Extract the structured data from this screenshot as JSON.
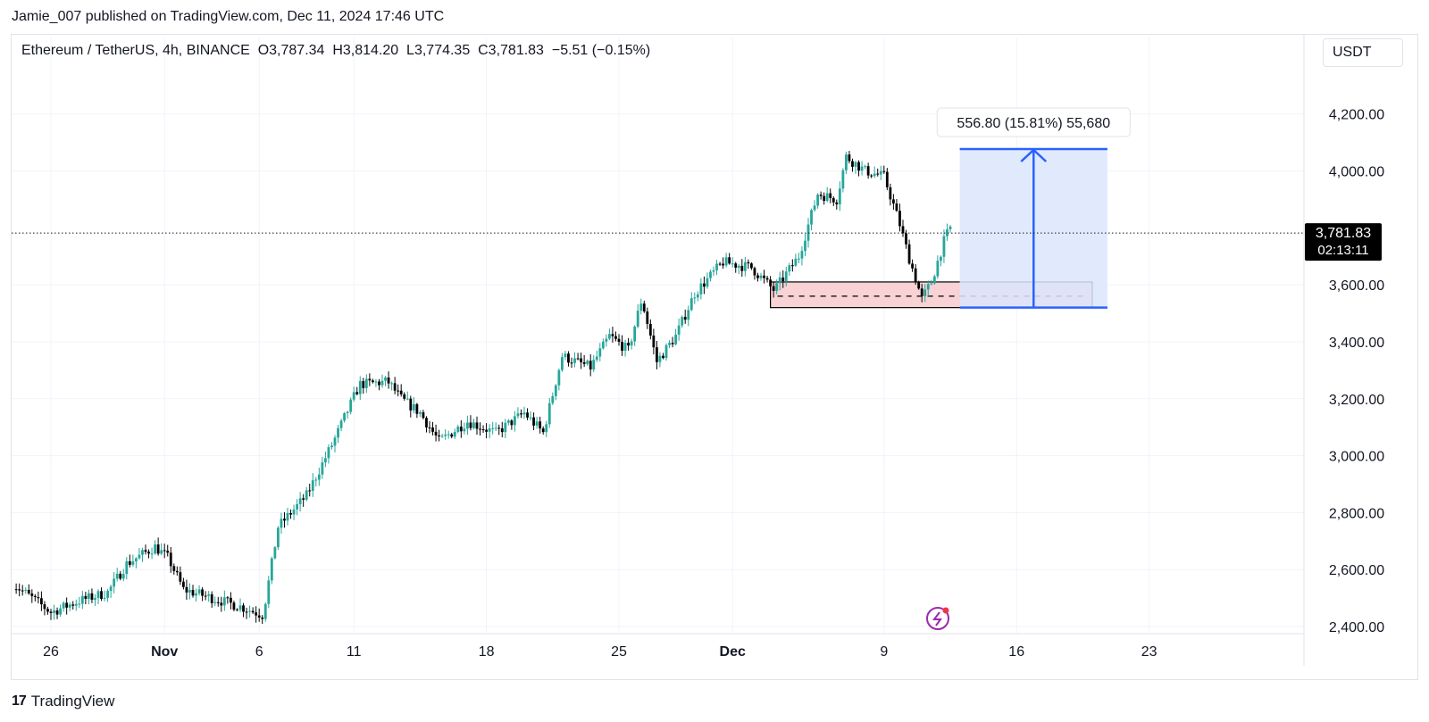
{
  "header": {
    "published_text": "Jamie_007 published on TradingView.com, Dec 11, 2024 17:46 UTC"
  },
  "legend": {
    "text": "Ethereum / TetherUS, 4h, BINANCE  O3,787.34  H3,814.20  L3,774.35  C3,781.83  −5.51 (−0.15%)"
  },
  "price_scale": {
    "currency": "USDT",
    "last_price": "3,781.83",
    "countdown": "02:13:11"
  },
  "measure_label": "556.80 (15.81%) 55,680",
  "footer": {
    "brand": "TradingView",
    "logo_glyph": "17"
  },
  "colors": {
    "up": "#26a69a",
    "down": "#000000",
    "measure": "#2962ff",
    "measure_fill": "#dce6fd",
    "zone_fill": "#f8d2d4",
    "flash_icon": "#9c27b0"
  },
  "chart_data": {
    "type": "candlestick",
    "symbol": "ETHUSDT",
    "timeframe": "4h",
    "ylim": [
      2380,
      4420
    ],
    "yticks": [
      {
        "value": 2400,
        "label": "2,400.00"
      },
      {
        "value": 2600,
        "label": "2,600.00"
      },
      {
        "value": 2800,
        "label": "2,800.00"
      },
      {
        "value": 3000,
        "label": "3,000.00"
      },
      {
        "value": 3200,
        "label": "3,200.00"
      },
      {
        "value": 3400,
        "label": "3,400.00"
      },
      {
        "value": 3600,
        "label": "3,600.00"
      },
      {
        "value": 4000,
        "label": "4,000.00"
      },
      {
        "value": 4200,
        "label": "4,200.00"
      }
    ],
    "xticks": [
      {
        "day": 0,
        "label": "26",
        "bold": false
      },
      {
        "day": 6,
        "label": "Nov",
        "bold": true
      },
      {
        "day": 11,
        "label": "6",
        "bold": false
      },
      {
        "day": 16,
        "label": "11",
        "bold": false
      },
      {
        "day": 23,
        "label": "18",
        "bold": false
      },
      {
        "day": 30,
        "label": "25",
        "bold": false
      },
      {
        "day": 36,
        "label": "Dec",
        "bold": true
      },
      {
        "day": 44,
        "label": "9",
        "bold": false
      },
      {
        "day": 51,
        "label": "16",
        "bold": false
      },
      {
        "day": 58,
        "label": "23",
        "bold": false
      }
    ],
    "last_price": 3781.83,
    "path_points": [
      [
        -2.0,
        2550
      ],
      [
        0.0,
        2450
      ],
      [
        1.5,
        2490
      ],
      [
        3.0,
        2520
      ],
      [
        4.0,
        2620
      ],
      [
        5.5,
        2680
      ],
      [
        6.2,
        2640
      ],
      [
        7.0,
        2530
      ],
      [
        8.5,
        2500
      ],
      [
        10.0,
        2470
      ],
      [
        11.2,
        2440
      ],
      [
        12.0,
        2750
      ],
      [
        13.5,
        2860
      ],
      [
        15.0,
        3060
      ],
      [
        16.3,
        3250
      ],
      [
        17.8,
        3260
      ],
      [
        18.5,
        3200
      ],
      [
        19.5,
        3150
      ],
      [
        20.5,
        3050
      ],
      [
        22.0,
        3120
      ],
      [
        23.5,
        3080
      ],
      [
        25.0,
        3150
      ],
      [
        26.0,
        3080
      ],
      [
        27.0,
        3350
      ],
      [
        28.5,
        3310
      ],
      [
        29.5,
        3420
      ],
      [
        30.5,
        3370
      ],
      [
        31.2,
        3550
      ],
      [
        32.0,
        3330
      ],
      [
        33.0,
        3420
      ],
      [
        34.0,
        3570
      ],
      [
        35.5,
        3680
      ],
      [
        37.0,
        3660
      ],
      [
        38.2,
        3580
      ],
      [
        39.5,
        3700
      ],
      [
        40.5,
        3920
      ],
      [
        41.5,
        3900
      ],
      [
        42.0,
        4050
      ],
      [
        43.0,
        4000
      ],
      [
        44.0,
        3980
      ],
      [
        44.8,
        3820
      ],
      [
        45.3,
        3700
      ],
      [
        46.0,
        3550
      ],
      [
        46.5,
        3610
      ],
      [
        47.2,
        3760
      ],
      [
        47.5,
        3800
      ]
    ],
    "ohlc_last": {
      "open": 3787.34,
      "high": 3814.2,
      "low": 3774.35,
      "close": 3781.83,
      "change": -5.51,
      "change_pct": -0.15
    },
    "annotations": {
      "demand_zone": {
        "price_low": 3520,
        "price_high": 3610,
        "mid_price": 3560,
        "day_start": 38.0,
        "day_end": 55.0
      },
      "long_measure": {
        "from_price": 3520,
        "to_price": 4076.8,
        "day_start": 48.0,
        "day_end": 55.8,
        "change": 556.8,
        "change_pct": 15.81,
        "ticks": 55680
      }
    }
  }
}
